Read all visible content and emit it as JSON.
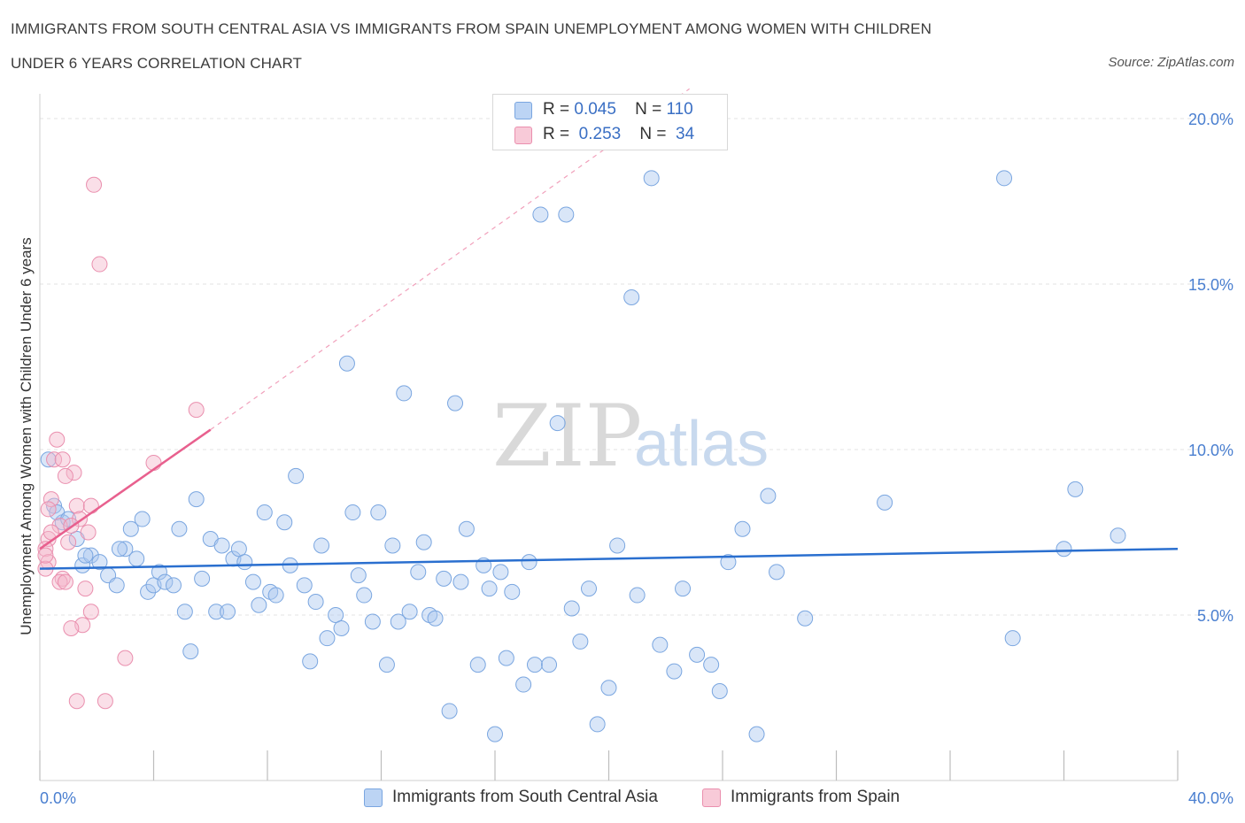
{
  "title_line1": "IMMIGRANTS FROM SOUTH CENTRAL ASIA VS IMMIGRANTS FROM SPAIN UNEMPLOYMENT AMONG WOMEN WITH CHILDREN",
  "title_line2": "UNDER 6 YEARS CORRELATION CHART",
  "source": "Source: ZipAtlas.com",
  "watermark": {
    "zip": "ZIP",
    "atlas": "atlas"
  },
  "legend": {
    "r_label": "R =",
    "n_label": "N =",
    "blue": {
      "r": "0.045",
      "n": "110"
    },
    "pink": {
      "r": "0.253",
      "n": "34"
    }
  },
  "colors": {
    "blue_fill": "#aac8f0",
    "blue_stroke": "#7aa6e0",
    "blue_line": "#2a6fcf",
    "pink_fill": "#f5b8cb",
    "pink_stroke": "#ea8fae",
    "pink_line": "#e8608e",
    "axis_text": "#4a7fd0",
    "grid": "#e3e3e3"
  },
  "chart_data": {
    "type": "scatter",
    "ylabel": "Unemployment Among Women with Children Under 6 years",
    "xlabel": "",
    "xlim": [
      0,
      40
    ],
    "ylim": [
      0,
      20
    ],
    "x_tick_labels": [
      "0.0%",
      "40.0%"
    ],
    "y_ticks": [
      5,
      10,
      15,
      20
    ],
    "y_tick_labels": [
      "5.0%",
      "10.0%",
      "15.0%",
      "20.0%"
    ],
    "grid": true,
    "legend_position": "bottom-center",
    "series": [
      {
        "name": "Immigrants from South Central Asia",
        "color": "#aac8f0",
        "R": 0.045,
        "N": 110,
        "trend": {
          "x": [
            0,
            40
          ],
          "y": [
            6.4,
            7.0
          ]
        },
        "points": [
          [
            0.5,
            8.3
          ],
          [
            0.8,
            7.8
          ],
          [
            1.3,
            7.3
          ],
          [
            1.5,
            6.5
          ],
          [
            1.8,
            6.8
          ],
          [
            2.1,
            6.6
          ],
          [
            2.4,
            6.2
          ],
          [
            2.7,
            5.9
          ],
          [
            3.0,
            7.0
          ],
          [
            3.2,
            7.6
          ],
          [
            3.4,
            6.7
          ],
          [
            3.6,
            7.9
          ],
          [
            3.8,
            5.7
          ],
          [
            4.0,
            5.9
          ],
          [
            4.2,
            6.3
          ],
          [
            4.4,
            6.0
          ],
          [
            4.7,
            5.9
          ],
          [
            4.9,
            7.6
          ],
          [
            5.1,
            5.1
          ],
          [
            5.3,
            3.9
          ],
          [
            5.5,
            8.5
          ],
          [
            5.7,
            6.1
          ],
          [
            6.0,
            7.3
          ],
          [
            6.2,
            5.1
          ],
          [
            6.4,
            7.1
          ],
          [
            6.6,
            5.1
          ],
          [
            6.8,
            6.7
          ],
          [
            7.0,
            7.0
          ],
          [
            7.2,
            6.6
          ],
          [
            7.5,
            6.0
          ],
          [
            7.7,
            5.3
          ],
          [
            7.9,
            8.1
          ],
          [
            8.1,
            5.7
          ],
          [
            8.3,
            5.6
          ],
          [
            8.6,
            7.8
          ],
          [
            8.8,
            6.5
          ],
          [
            9.0,
            9.2
          ],
          [
            9.3,
            5.9
          ],
          [
            9.5,
            3.6
          ],
          [
            9.7,
            5.4
          ],
          [
            9.9,
            7.1
          ],
          [
            10.1,
            4.3
          ],
          [
            10.4,
            5.0
          ],
          [
            10.6,
            4.6
          ],
          [
            10.8,
            12.6
          ],
          [
            11.0,
            8.1
          ],
          [
            11.2,
            6.2
          ],
          [
            11.4,
            5.6
          ],
          [
            11.7,
            4.8
          ],
          [
            11.9,
            8.1
          ],
          [
            12.2,
            3.5
          ],
          [
            12.4,
            7.1
          ],
          [
            12.6,
            4.8
          ],
          [
            12.8,
            11.7
          ],
          [
            13.0,
            5.1
          ],
          [
            13.3,
            6.3
          ],
          [
            13.5,
            7.2
          ],
          [
            13.7,
            5.0
          ],
          [
            13.9,
            4.9
          ],
          [
            14.2,
            6.1
          ],
          [
            14.4,
            2.1
          ],
          [
            14.6,
            11.4
          ],
          [
            14.8,
            6.0
          ],
          [
            15.0,
            7.6
          ],
          [
            15.4,
            3.5
          ],
          [
            15.6,
            6.5
          ],
          [
            15.8,
            5.8
          ],
          [
            16.0,
            1.4
          ],
          [
            16.2,
            6.3
          ],
          [
            16.4,
            3.7
          ],
          [
            16.6,
            5.7
          ],
          [
            17.0,
            2.9
          ],
          [
            17.2,
            6.6
          ],
          [
            17.4,
            3.5
          ],
          [
            17.6,
            17.1
          ],
          [
            17.9,
            3.5
          ],
          [
            18.2,
            10.8
          ],
          [
            18.5,
            17.1
          ],
          [
            18.7,
            5.2
          ],
          [
            19.0,
            4.2
          ],
          [
            19.3,
            5.8
          ],
          [
            19.6,
            1.7
          ],
          [
            20.0,
            2.8
          ],
          [
            20.3,
            7.1
          ],
          [
            20.8,
            14.6
          ],
          [
            21.0,
            5.6
          ],
          [
            21.5,
            18.2
          ],
          [
            21.8,
            4.1
          ],
          [
            22.3,
            3.3
          ],
          [
            22.6,
            5.8
          ],
          [
            23.1,
            3.8
          ],
          [
            23.6,
            3.5
          ],
          [
            23.9,
            2.7
          ],
          [
            24.2,
            6.6
          ],
          [
            24.7,
            7.6
          ],
          [
            25.2,
            1.4
          ],
          [
            25.6,
            8.6
          ],
          [
            25.9,
            6.3
          ],
          [
            26.9,
            4.9
          ],
          [
            29.7,
            8.4
          ],
          [
            33.9,
            18.2
          ],
          [
            34.2,
            4.3
          ],
          [
            36.0,
            7.0
          ],
          [
            36.4,
            8.8
          ],
          [
            37.9,
            7.4
          ],
          [
            0.3,
            9.7
          ],
          [
            0.6,
            8.1
          ],
          [
            1.0,
            7.9
          ],
          [
            2.8,
            7.0
          ],
          [
            1.6,
            6.8
          ]
        ]
      },
      {
        "name": "Immigrants from Spain",
        "color": "#f5b8cb",
        "R": 0.253,
        "N": 34,
        "trend": {
          "x": [
            0,
            6
          ],
          "y": [
            7.0,
            10.6
          ]
        },
        "trend_dashed": {
          "x": [
            6,
            40
          ],
          "y": [
            10.6,
            31.4
          ]
        },
        "points": [
          [
            1.9,
            18.0
          ],
          [
            2.1,
            15.6
          ],
          [
            5.5,
            11.2
          ],
          [
            0.6,
            10.3
          ],
          [
            0.5,
            9.7
          ],
          [
            0.8,
            9.7
          ],
          [
            4.0,
            9.6
          ],
          [
            1.2,
            9.3
          ],
          [
            0.9,
            9.2
          ],
          [
            0.4,
            8.5
          ],
          [
            1.3,
            8.3
          ],
          [
            1.8,
            8.3
          ],
          [
            0.3,
            8.2
          ],
          [
            0.7,
            7.7
          ],
          [
            1.4,
            7.9
          ],
          [
            1.1,
            7.7
          ],
          [
            1.7,
            7.5
          ],
          [
            0.3,
            7.3
          ],
          [
            0.4,
            7.5
          ],
          [
            1.0,
            7.2
          ],
          [
            0.2,
            7.0
          ],
          [
            0.3,
            6.6
          ],
          [
            0.2,
            6.4
          ],
          [
            0.8,
            6.1
          ],
          [
            0.7,
            6.0
          ],
          [
            0.9,
            6.0
          ],
          [
            1.6,
            5.8
          ],
          [
            1.8,
            5.1
          ],
          [
            1.5,
            4.7
          ],
          [
            1.1,
            4.6
          ],
          [
            3.0,
            3.7
          ],
          [
            1.3,
            2.4
          ],
          [
            2.3,
            2.4
          ],
          [
            0.2,
            6.8
          ]
        ]
      }
    ]
  }
}
